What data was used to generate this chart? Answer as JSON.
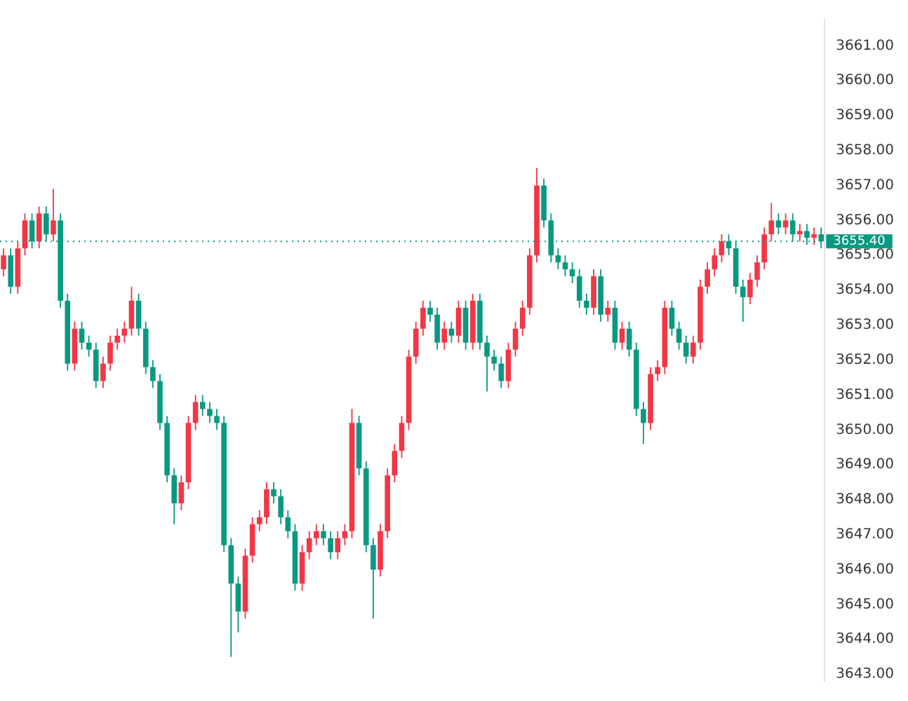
{
  "chart_data": {
    "type": "candlestick",
    "tick_labels": "y",
    "grid": false,
    "legend": false,
    "categories": [
      null,
      null,
      null,
      null,
      null,
      null,
      null,
      null,
      null,
      null,
      null,
      null,
      null,
      null,
      null,
      null,
      null,
      null,
      null,
      null,
      null,
      null,
      null,
      null,
      null,
      null,
      null,
      null,
      null,
      null,
      null,
      null,
      null,
      null,
      null,
      null,
      null,
      null,
      null,
      null,
      null,
      null,
      null,
      null,
      null,
      null,
      null,
      null,
      null,
      null,
      null,
      null,
      null,
      null,
      null,
      null,
      null,
      null,
      null,
      null,
      null,
      null,
      null,
      null,
      null,
      null,
      null,
      null,
      null,
      null,
      null,
      null,
      null,
      null,
      null,
      null,
      null,
      null,
      null,
      null,
      null,
      null,
      null,
      null,
      null,
      null,
      null,
      null,
      null,
      null,
      null,
      null,
      null,
      null,
      null,
      null,
      null,
      null,
      null,
      null,
      null,
      null,
      null,
      null,
      null,
      null,
      null,
      null,
      null,
      null,
      null,
      null,
      null,
      null,
      null,
      null
    ],
    "ohlc": [
      [
        3654.6,
        3655.2,
        3654.4,
        3655.0
      ],
      [
        3655.0,
        3655.2,
        3653.9,
        3654.1
      ],
      [
        3654.1,
        3655.4,
        3653.9,
        3655.2
      ],
      [
        3655.2,
        3656.2,
        3655.0,
        3656.0
      ],
      [
        3656.0,
        3656.2,
        3655.2,
        3655.4
      ],
      [
        3655.4,
        3656.4,
        3655.2,
        3656.2
      ],
      [
        3656.2,
        3656.4,
        3655.4,
        3655.6
      ],
      [
        3655.6,
        3656.9,
        3655.4,
        3656.0
      ],
      [
        3656.0,
        3656.2,
        3653.5,
        3653.7
      ],
      [
        3653.7,
        3653.9,
        3651.7,
        3651.9
      ],
      [
        3651.9,
        3653.1,
        3651.7,
        3652.9
      ],
      [
        3652.9,
        3653.1,
        3652.3,
        3652.5
      ],
      [
        3652.5,
        3652.7,
        3652.1,
        3652.3
      ],
      [
        3652.3,
        3652.5,
        3651.2,
        3651.4
      ],
      [
        3651.4,
        3652.1,
        3651.2,
        3651.9
      ],
      [
        3651.9,
        3652.7,
        3651.7,
        3652.5
      ],
      [
        3652.5,
        3652.9,
        3652.3,
        3652.7
      ],
      [
        3652.7,
        3653.1,
        3652.5,
        3652.9
      ],
      [
        3652.9,
        3654.1,
        3652.7,
        3653.7
      ],
      [
        3653.7,
        3653.9,
        3652.7,
        3652.9
      ],
      [
        3652.9,
        3653.1,
        3651.6,
        3651.8
      ],
      [
        3651.8,
        3652.0,
        3651.2,
        3651.4
      ],
      [
        3651.4,
        3651.6,
        3650.0,
        3650.2
      ],
      [
        3650.2,
        3650.4,
        3648.5,
        3648.7
      ],
      [
        3648.7,
        3648.9,
        3647.3,
        3647.9
      ],
      [
        3647.9,
        3648.7,
        3647.7,
        3648.5
      ],
      [
        3648.5,
        3650.4,
        3648.3,
        3650.2
      ],
      [
        3650.2,
        3651.0,
        3650.0,
        3650.8
      ],
      [
        3650.8,
        3651.0,
        3650.4,
        3650.6
      ],
      [
        3650.6,
        3650.8,
        3650.2,
        3650.4
      ],
      [
        3650.4,
        3650.6,
        3650.0,
        3650.2
      ],
      [
        3650.2,
        3650.4,
        3646.5,
        3646.7
      ],
      [
        3646.7,
        3646.9,
        3643.5,
        3645.6
      ],
      [
        3645.6,
        3645.8,
        3644.2,
        3644.8
      ],
      [
        3644.8,
        3646.6,
        3644.6,
        3646.4
      ],
      [
        3646.4,
        3647.5,
        3646.2,
        3647.3
      ],
      [
        3647.3,
        3647.7,
        3647.1,
        3647.5
      ],
      [
        3647.5,
        3648.5,
        3647.3,
        3648.3
      ],
      [
        3648.3,
        3648.5,
        3647.9,
        3648.1
      ],
      [
        3648.1,
        3648.3,
        3647.3,
        3647.5
      ],
      [
        3647.5,
        3647.7,
        3646.9,
        3647.1
      ],
      [
        3647.1,
        3647.3,
        3645.4,
        3645.6
      ],
      [
        3645.6,
        3646.7,
        3645.4,
        3646.5
      ],
      [
        3646.5,
        3647.1,
        3646.3,
        3646.9
      ],
      [
        3646.9,
        3647.3,
        3646.7,
        3647.1
      ],
      [
        3647.1,
        3647.3,
        3646.7,
        3646.9
      ],
      [
        3646.9,
        3647.1,
        3646.3,
        3646.5
      ],
      [
        3646.5,
        3647.1,
        3646.3,
        3646.9
      ],
      [
        3646.9,
        3647.3,
        3646.7,
        3647.1
      ],
      [
        3647.1,
        3650.6,
        3646.9,
        3650.2
      ],
      [
        3650.2,
        3650.4,
        3648.7,
        3648.9
      ],
      [
        3648.9,
        3649.1,
        3646.5,
        3646.7
      ],
      [
        3646.7,
        3646.9,
        3644.6,
        3646.0
      ],
      [
        3646.0,
        3647.3,
        3645.8,
        3647.1
      ],
      [
        3647.1,
        3648.9,
        3646.9,
        3648.7
      ],
      [
        3648.7,
        3649.6,
        3648.5,
        3649.4
      ],
      [
        3649.4,
        3650.4,
        3649.2,
        3650.2
      ],
      [
        3650.2,
        3652.3,
        3650.0,
        3652.1
      ],
      [
        3652.1,
        3653.1,
        3651.9,
        3652.9
      ],
      [
        3652.9,
        3653.7,
        3652.7,
        3653.5
      ],
      [
        3653.5,
        3653.7,
        3653.1,
        3653.3
      ],
      [
        3653.3,
        3653.5,
        3652.3,
        3652.5
      ],
      [
        3652.5,
        3653.1,
        3652.3,
        3652.9
      ],
      [
        3652.9,
        3653.1,
        3652.5,
        3652.7
      ],
      [
        3652.7,
        3653.7,
        3652.5,
        3653.5
      ],
      [
        3653.5,
        3653.7,
        3652.3,
        3652.5
      ],
      [
        3652.5,
        3653.9,
        3652.3,
        3653.7
      ],
      [
        3653.7,
        3653.9,
        3652.3,
        3652.5
      ],
      [
        3652.5,
        3652.7,
        3651.1,
        3652.1
      ],
      [
        3652.1,
        3652.3,
        3651.7,
        3651.9
      ],
      [
        3651.9,
        3652.1,
        3651.2,
        3651.4
      ],
      [
        3651.4,
        3652.5,
        3651.2,
        3652.3
      ],
      [
        3652.3,
        3653.1,
        3652.1,
        3652.9
      ],
      [
        3652.9,
        3653.7,
        3652.7,
        3653.5
      ],
      [
        3653.5,
        3655.2,
        3653.3,
        3655.0
      ],
      [
        3655.0,
        3657.5,
        3654.8,
        3657.0
      ],
      [
        3657.0,
        3657.2,
        3655.8,
        3656.0
      ],
      [
        3656.0,
        3656.2,
        3654.8,
        3655.0
      ],
      [
        3655.0,
        3655.2,
        3654.6,
        3654.8
      ],
      [
        3654.8,
        3655.0,
        3654.4,
        3654.6
      ],
      [
        3654.6,
        3654.8,
        3654.2,
        3654.4
      ],
      [
        3654.4,
        3654.6,
        3653.5,
        3653.7
      ],
      [
        3653.7,
        3653.9,
        3653.3,
        3653.5
      ],
      [
        3653.5,
        3654.6,
        3653.3,
        3654.4
      ],
      [
        3654.4,
        3654.6,
        3653.1,
        3653.3
      ],
      [
        3653.3,
        3653.7,
        3653.1,
        3653.5
      ],
      [
        3653.5,
        3653.7,
        3652.3,
        3652.5
      ],
      [
        3652.5,
        3653.1,
        3652.3,
        3652.9
      ],
      [
        3652.9,
        3653.1,
        3652.1,
        3652.3
      ],
      [
        3652.3,
        3652.5,
        3650.4,
        3650.6
      ],
      [
        3650.6,
        3650.8,
        3649.6,
        3650.2
      ],
      [
        3650.2,
        3651.8,
        3650.0,
        3651.6
      ],
      [
        3651.6,
        3652.0,
        3651.4,
        3651.8
      ],
      [
        3651.8,
        3653.7,
        3651.6,
        3653.5
      ],
      [
        3653.5,
        3653.7,
        3652.7,
        3652.9
      ],
      [
        3652.9,
        3653.1,
        3652.3,
        3652.5
      ],
      [
        3652.5,
        3652.7,
        3651.9,
        3652.1
      ],
      [
        3652.1,
        3652.7,
        3651.9,
        3652.5
      ],
      [
        3652.5,
        3654.3,
        3652.3,
        3654.1
      ],
      [
        3654.1,
        3654.8,
        3653.9,
        3654.6
      ],
      [
        3654.6,
        3655.2,
        3654.4,
        3655.0
      ],
      [
        3655.0,
        3655.6,
        3654.8,
        3655.4
      ],
      [
        3655.4,
        3655.6,
        3655.0,
        3655.2
      ],
      [
        3655.2,
        3655.4,
        3653.9,
        3654.1
      ],
      [
        3654.1,
        3654.3,
        3653.1,
        3653.8
      ],
      [
        3653.8,
        3654.5,
        3653.6,
        3654.3
      ],
      [
        3654.3,
        3655.0,
        3654.1,
        3654.8
      ],
      [
        3654.8,
        3655.8,
        3654.6,
        3655.6
      ],
      [
        3655.6,
        3656.5,
        3655.4,
        3656.0
      ],
      [
        3656.0,
        3656.2,
        3655.6,
        3655.8
      ],
      [
        3655.8,
        3656.2,
        3655.6,
        3656.0
      ],
      [
        3656.0,
        3656.2,
        3655.4,
        3655.6
      ],
      [
        3655.6,
        3655.9,
        3655.4,
        3655.7
      ],
      [
        3655.7,
        3655.9,
        3655.3,
        3655.5
      ],
      [
        3655.5,
        3655.8,
        3655.3,
        3655.6
      ],
      [
        3655.6,
        3655.8,
        3655.2,
        3655.4
      ]
    ],
    "colors": [
      "#f23645",
      "#089981",
      "#f23645",
      "#f23645",
      "#089981",
      "#f23645",
      "#089981",
      "#f23645",
      "#089981",
      "#089981",
      "#f23645",
      "#089981",
      "#089981",
      "#089981",
      "#f23645",
      "#f23645",
      "#f23645",
      "#f23645",
      "#f23645",
      "#089981",
      "#089981",
      "#089981",
      "#089981",
      "#089981",
      "#089981",
      "#f23645",
      "#f23645",
      "#f23645",
      "#089981",
      "#089981",
      "#089981",
      "#089981",
      "#089981",
      "#089981",
      "#f23645",
      "#f23645",
      "#f23645",
      "#f23645",
      "#089981",
      "#089981",
      "#089981",
      "#089981",
      "#f23645",
      "#f23645",
      "#f23645",
      "#089981",
      "#089981",
      "#f23645",
      "#f23645",
      "#f23645",
      "#089981",
      "#089981",
      "#089981",
      "#f23645",
      "#f23645",
      "#f23645",
      "#f23645",
      "#f23645",
      "#f23645",
      "#f23645",
      "#089981",
      "#089981",
      "#f23645",
      "#089981",
      "#f23645",
      "#089981",
      "#f23645",
      "#089981",
      "#089981",
      "#089981",
      "#089981",
      "#f23645",
      "#f23645",
      "#f23645",
      "#f23645",
      "#f23645",
      "#089981",
      "#089981",
      "#089981",
      "#089981",
      "#089981",
      "#089981",
      "#089981",
      "#f23645",
      "#089981",
      "#f23645",
      "#089981",
      "#f23645",
      "#089981",
      "#089981",
      "#089981",
      "#f23645",
      "#f23645",
      "#f23645",
      "#089981",
      "#089981",
      "#089981",
      "#f23645",
      "#f23645",
      "#f23645",
      "#f23645",
      "#f23645",
      "#089981",
      "#089981",
      "#089981",
      "#f23645",
      "#f23645",
      "#f23645",
      "#f23645",
      "#089981",
      "#f23645",
      "#089981",
      "#f23645",
      "#089981",
      "#f23645",
      "#089981"
    ],
    "ylim": [
      3642.8,
      3661.75
    ],
    "yticks": [
      {
        "value": 3643,
        "label": "3643.00"
      },
      {
        "value": 3644,
        "label": "3644.00"
      },
      {
        "value": 3645,
        "label": "3645.00"
      },
      {
        "value": 3646,
        "label": "3646.00"
      },
      {
        "value": 3647,
        "label": "3647.00"
      },
      {
        "value": 3648,
        "label": "3648.00"
      },
      {
        "value": 3649,
        "label": "3649.00"
      },
      {
        "value": 3650,
        "label": "3650.00"
      },
      {
        "value": 3651,
        "label": "3651.00"
      },
      {
        "value": 3652,
        "label": "3652.00"
      },
      {
        "value": 3653,
        "label": "3653.00"
      },
      {
        "value": 3654,
        "label": "3654.00"
      },
      {
        "value": 3655,
        "label": "3655.00"
      },
      {
        "value": 3656,
        "label": "3656.00"
      },
      {
        "value": 3657,
        "label": "3657.00"
      },
      {
        "value": 3658,
        "label": "3658.00"
      },
      {
        "value": 3659,
        "label": "3659.00"
      },
      {
        "value": 3660,
        "label": "3660.00"
      },
      {
        "value": 3661,
        "label": "3661.00"
      }
    ],
    "ref_lines": [
      {
        "axis": "y",
        "value": 3655.4,
        "label": "3655.40",
        "color": "#089981",
        "line_style": "dotted"
      }
    ]
  }
}
